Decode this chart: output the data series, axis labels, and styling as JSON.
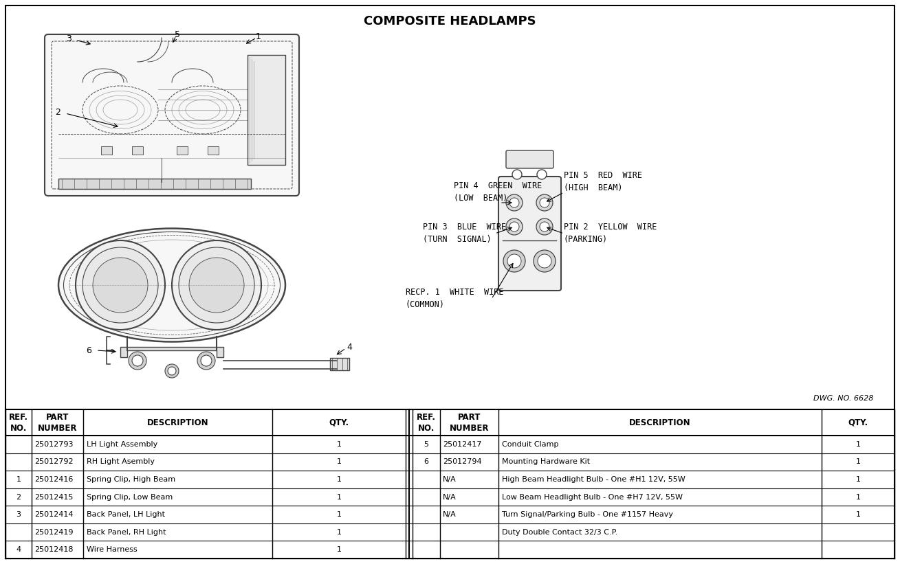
{
  "title": "COMPOSITE HEADLAMPS",
  "title_fontsize": 13,
  "title_fontweight": "bold",
  "dwg_no": "DWG. NO. 6628",
  "background_color": "#ffffff",
  "line_color": "#000000",
  "text_color": "#000000",
  "diagram_color": "#444444",
  "table_rows_left": [
    [
      "",
      "25012793",
      "LH Light Assembly",
      "1"
    ],
    [
      "",
      "25012792",
      "RH Light Asembly",
      "1"
    ],
    [
      "1",
      "25012416",
      "Spring Clip, High Beam",
      "1"
    ],
    [
      "2",
      "25012415",
      "Spring Clip, Low Beam",
      "1"
    ],
    [
      "3",
      "25012414",
      "Back Panel, LH Light",
      "1"
    ],
    [
      "",
      "25012419",
      "Back Panel, RH Light",
      "1"
    ],
    [
      "4",
      "25012418",
      "Wire Harness",
      "1"
    ]
  ],
  "table_rows_right": [
    [
      "5",
      "25012417",
      "Conduit Clamp",
      "1"
    ],
    [
      "6",
      "25012794",
      "Mounting Hardware Kit",
      "1"
    ],
    [
      "",
      "N/A",
      "High Beam Headlight Bulb - One #H1 12V, 55W",
      "1"
    ],
    [
      "",
      "N/A",
      "Low Beam Headlight Bulb - One #H7 12V, 55W",
      "1"
    ],
    [
      "",
      "N/A",
      "Turn Signal/Parking Bulb - One #1157 Heavy",
      "1"
    ],
    [
      "",
      "",
      "Duty Double Contact 32/3 C.P.",
      ""
    ],
    [
      "",
      "",
      "",
      ""
    ]
  ],
  "table_fontsize": 8,
  "header_fontsize": 8.5
}
